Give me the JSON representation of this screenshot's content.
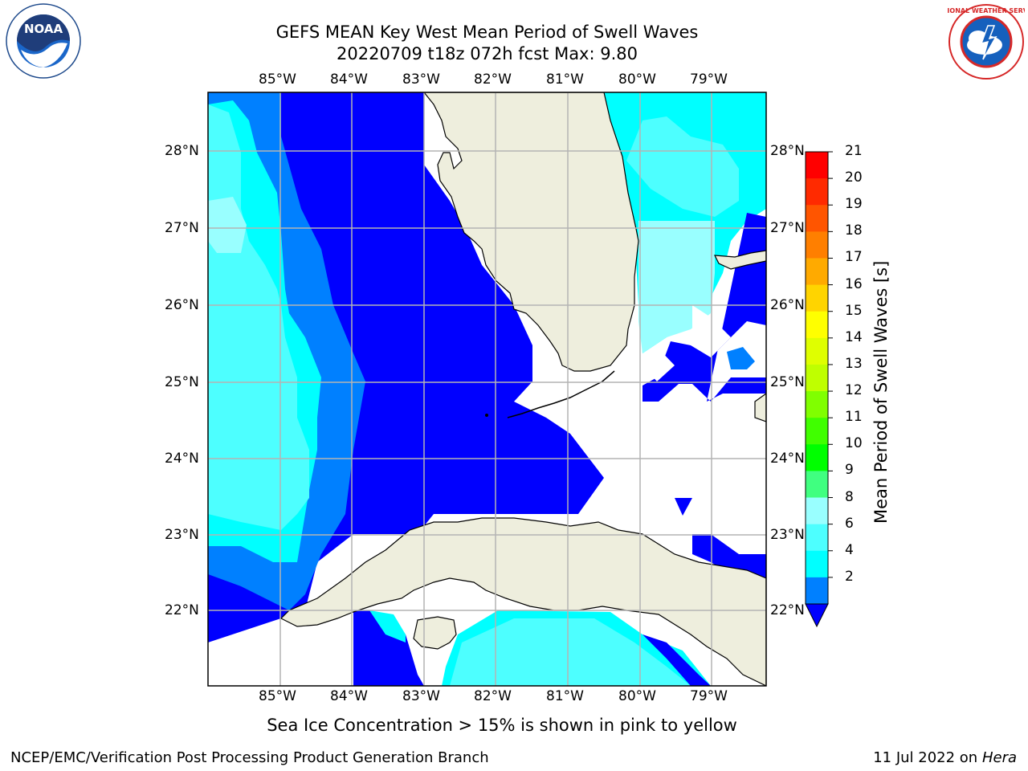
{
  "header": {
    "title_line1": "GEFS MEAN Key West Mean Period of Swell Waves",
    "title_line2": "20220709 t18z 072h fcst   Max: 9.80"
  },
  "logos": {
    "left": {
      "name": "noaa-logo",
      "text": "NOAA"
    },
    "right": {
      "name": "nws-logo",
      "text": "NATIONAL WEATHER SERVICE"
    }
  },
  "map": {
    "lon_labels": [
      "85°W",
      "84°W",
      "83°W",
      "82°W",
      "81°W",
      "80°W",
      "79°W"
    ],
    "lat_labels": [
      "28°N",
      "27°N",
      "26°N",
      "25°N",
      "24°N",
      "23°N",
      "22°N"
    ],
    "colors": {
      "land": "#eeeedd",
      "grid": "#b4b4b4",
      "c2_4": "#0000ff",
      "c4_6": "#0080ff",
      "c6_8": "#00ffff",
      "c8_9": "#99ffff"
    }
  },
  "colorbar": {
    "title": "Mean Period of Swell Waves [s]",
    "labels": [
      "21",
      "20",
      "19",
      "18",
      "17",
      "16",
      "15",
      "14",
      "13",
      "12",
      "11",
      "10",
      "9",
      "8",
      "6",
      "4",
      "2"
    ],
    "colors": [
      "#ff0000",
      "#ff2a00",
      "#ff5500",
      "#ff7f00",
      "#ffaa00",
      "#ffd400",
      "#ffff00",
      "#dfff00",
      "#bfff00",
      "#80ff00",
      "#40ff00",
      "#00ff00",
      "#40ff80",
      "#99ffff",
      "#4dffff",
      "#00ffff",
      "#0080ff"
    ],
    "under_color": "#0000ff"
  },
  "note": "Sea Ice Concentration > 15% is shown in pink to yellow",
  "footer": {
    "left": "NCEP/EMC/Verification Post Processing Product Generation Branch",
    "date": "11 Jul 2022 on ",
    "host": "Hera"
  }
}
